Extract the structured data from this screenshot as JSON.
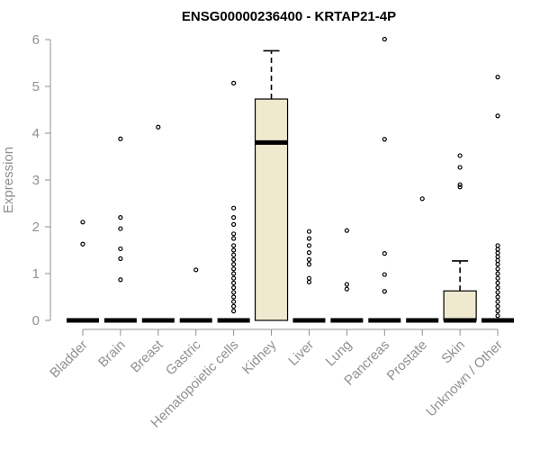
{
  "chart_data": {
    "type": "box",
    "title": "ENSG00000236400 - KRTAP21-4P",
    "xlabel": "",
    "ylabel": "Expression",
    "ylim": [
      0,
      6
    ],
    "yticks": [
      "0",
      "1",
      "2",
      "3",
      "4",
      "5",
      "6"
    ],
    "grid": false,
    "colors": {
      "box_fill": "#efe9cf",
      "stroke": "#000000",
      "axis": "#909090"
    },
    "categories": [
      "Bladder",
      "Brain",
      "Breast",
      "Gastric",
      "Hematopoietic cells",
      "Kidney",
      "Liver",
      "Lung",
      "Pancreas",
      "Prostate",
      "Skin",
      "Unknown / Other"
    ],
    "boxes": [
      {
        "category": "Bladder",
        "min": 0,
        "q1": 0,
        "median": 0,
        "q3": 0,
        "max": 0,
        "outliers": [
          2.1,
          1.63
        ]
      },
      {
        "category": "Brain",
        "min": 0,
        "q1": 0,
        "median": 0,
        "q3": 0,
        "max": 0,
        "outliers": [
          3.88,
          2.2,
          1.96,
          1.53,
          1.32,
          0.87
        ]
      },
      {
        "category": "Breast",
        "min": 0,
        "q1": 0,
        "median": 0,
        "q3": 0,
        "max": 0,
        "outliers": [
          4.13
        ]
      },
      {
        "category": "Gastric",
        "min": 0,
        "q1": 0,
        "median": 0,
        "q3": 0,
        "max": 0,
        "outliers": [
          1.08
        ]
      },
      {
        "category": "Hematopoietic cells",
        "min": 0,
        "q1": 0,
        "median": 0,
        "q3": 0,
        "max": 0,
        "outliers": [
          5.07,
          2.4,
          2.2,
          2.05,
          1.85,
          1.75,
          1.6,
          1.5,
          1.4,
          1.3,
          1.2,
          1.1,
          1.0,
          0.9,
          0.8,
          0.7,
          0.6,
          0.5,
          0.4,
          0.3,
          0.2
        ]
      },
      {
        "category": "Kidney",
        "min": 0,
        "q1": 0,
        "median": 3.8,
        "q3": 4.73,
        "max": 5.76,
        "outliers": []
      },
      {
        "category": "Liver",
        "min": 0,
        "q1": 0,
        "median": 0,
        "q3": 0,
        "max": 0,
        "outliers": [
          1.9,
          1.75,
          1.6,
          1.45,
          1.3,
          1.2,
          0.9,
          0.82
        ]
      },
      {
        "category": "Lung",
        "min": 0,
        "q1": 0,
        "median": 0,
        "q3": 0,
        "max": 0,
        "outliers": [
          1.92,
          0.77,
          0.67
        ]
      },
      {
        "category": "Pancreas",
        "min": 0,
        "q1": 0,
        "median": 0,
        "q3": 0,
        "max": 0,
        "outliers": [
          6.01,
          3.87,
          1.43,
          0.98,
          0.62
        ]
      },
      {
        "category": "Prostate",
        "min": 0,
        "q1": 0,
        "median": 0,
        "q3": 0,
        "max": 0,
        "outliers": [
          2.6
        ]
      },
      {
        "category": "Skin",
        "min": 0,
        "q1": 0,
        "median": 0,
        "q3": 0.63,
        "max": 1.27,
        "outliers": [
          3.52,
          3.27,
          2.9,
          2.85
        ]
      },
      {
        "category": "Unknown / Other",
        "min": 0,
        "q1": 0,
        "median": 0,
        "q3": 0,
        "max": 0,
        "outliers": [
          5.2,
          4.37,
          1.6,
          1.52,
          1.44,
          1.36,
          1.28,
          1.2,
          1.1,
          1.0,
          0.9,
          0.8,
          0.7,
          0.6,
          0.5,
          0.4,
          0.3,
          0.2,
          0.1
        ]
      }
    ]
  }
}
